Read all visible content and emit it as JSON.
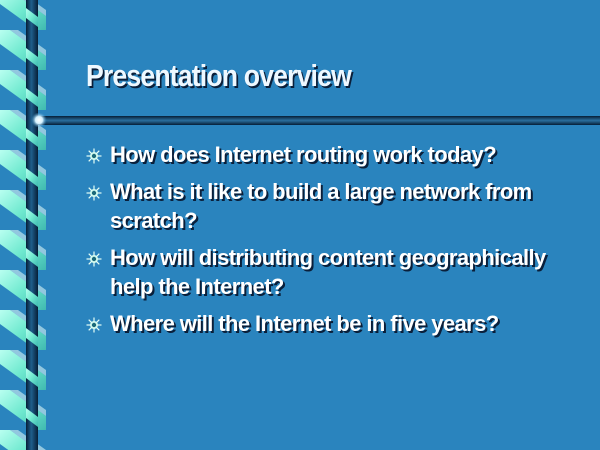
{
  "slide": {
    "title": "Presentation overview",
    "bullets": [
      "How does Internet routing work today?",
      "What is it like to build a large network from scratch?",
      "How will distributing content geographically help the Internet?",
      "Where will the Internet be in five years?"
    ]
  },
  "colors": {
    "background": "#2a84be",
    "ribbon_light": "#7ff5d6",
    "ribbon_dark": "#0b3a5e",
    "title_text": "#eef8ff",
    "bullet_text": "#ffffff",
    "rule": "#0d4a78"
  },
  "icons": {
    "bullet": "starburst-bullet-icon",
    "rule_end": "glow-orb-icon"
  }
}
